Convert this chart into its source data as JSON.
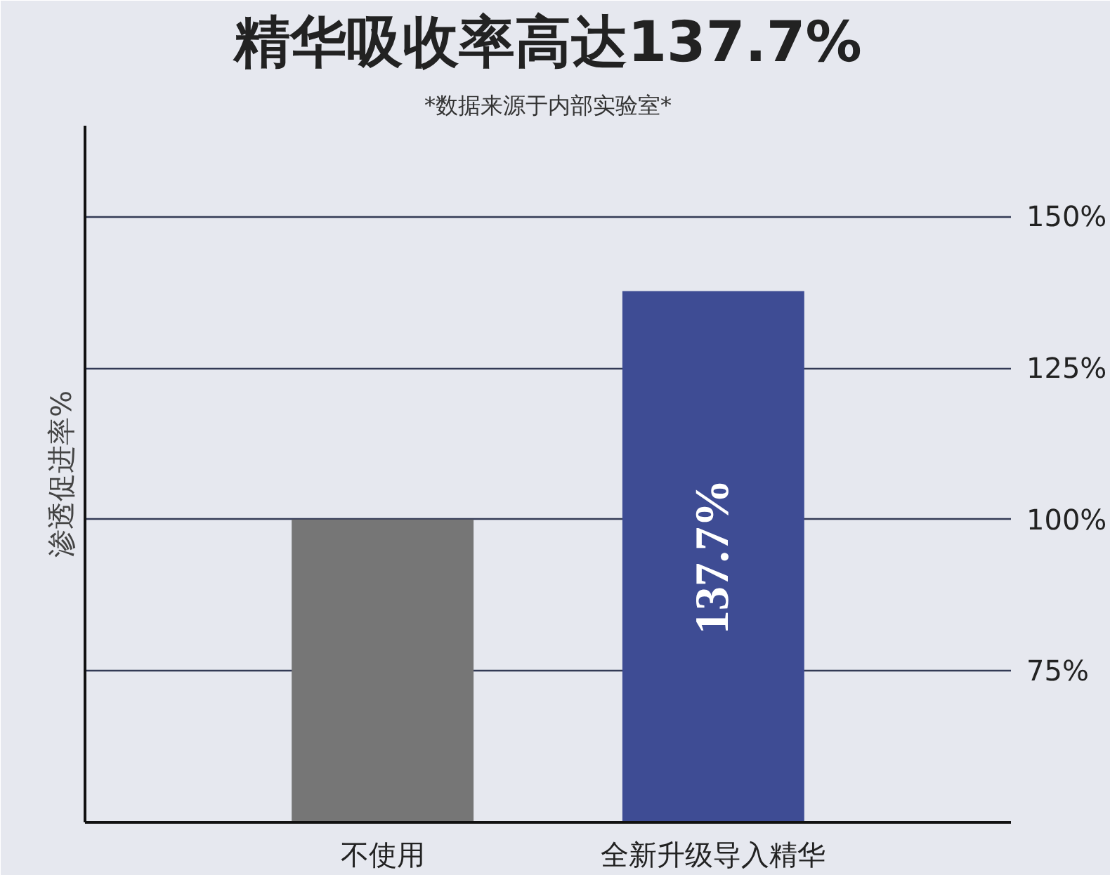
{
  "chart_data": {
    "type": "bar",
    "title": "精华吸收率高达137.7%",
    "subtitle": "*数据来源于内部实验室*",
    "ylabel": "渗透促进率%",
    "categories": [
      "不使用",
      "全新升级导入精华"
    ],
    "values": [
      100,
      137.7
    ],
    "colors": [
      "#767676",
      "#3e4c94"
    ],
    "value_labels": [
      null,
      "137.7%"
    ],
    "ylim": [
      50,
      165
    ],
    "yticks": [
      {
        "value": 75,
        "label": "75%"
      },
      {
        "value": 100,
        "label": "100%"
      },
      {
        "value": 125,
        "label": "125%"
      },
      {
        "value": 150,
        "label": "150%"
      }
    ],
    "grid": "y"
  }
}
